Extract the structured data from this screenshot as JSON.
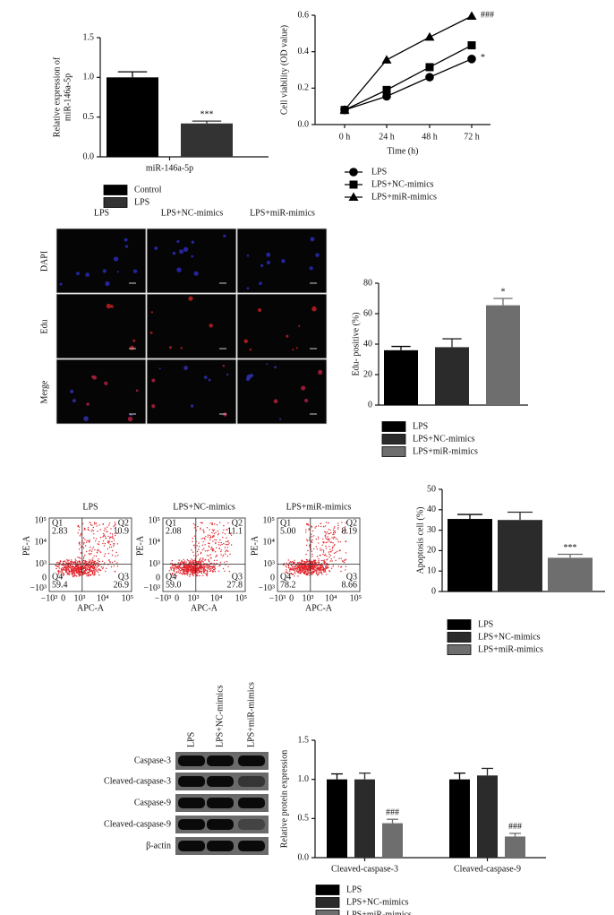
{
  "chart_data": [
    {
      "type": "bar",
      "y_label": [
        "Relative expression of",
        "miR-146a-5p"
      ],
      "categories": [
        "miR-146a-5p"
      ],
      "series": [
        {
          "name": "Control",
          "color": "#000000",
          "values": [
            1.0
          ],
          "errors": [
            0.07
          ],
          "annotations": [
            null
          ]
        },
        {
          "name": "LPS",
          "color": "#333333",
          "values": [
            0.42
          ],
          "errors": [
            0.03
          ],
          "annotations": [
            "***"
          ]
        }
      ],
      "ylim": [
        0,
        1.5
      ],
      "yticks": [
        {
          "value": 0,
          "label": "0.0"
        },
        0.5,
        {
          "value": 1,
          "label": "1.0"
        },
        1.5
      ]
    },
    {
      "type": "line",
      "x_label": "Time (h)",
      "y_label": [
        "Cell viability (OD value)"
      ],
      "categories": [
        "0 h",
        "24 h",
        "48 h",
        "72 h"
      ],
      "series": [
        {
          "name": "LPS",
          "color": "#000000",
          "marker": "circle",
          "values": [
            0.08,
            0.155,
            0.26,
            0.36
          ],
          "annotations": [
            null,
            null,
            null,
            "*"
          ]
        },
        {
          "name": "LPS+NC-mimics",
          "color": "#000000",
          "marker": "square",
          "values": [
            0.08,
            0.19,
            0.315,
            0.435
          ],
          "annotations": [
            null,
            null,
            null,
            null
          ]
        },
        {
          "name": "LPS+miR-mimics",
          "color": "#000000",
          "marker": "triangle",
          "values": [
            0.08,
            0.355,
            0.48,
            0.595
          ],
          "annotations": [
            null,
            null,
            null,
            "###"
          ]
        }
      ],
      "ylim": [
        0,
        0.6
      ],
      "yticks": [
        {
          "value": 0,
          "label": "0.0"
        },
        0.2,
        0.4,
        0.6
      ]
    },
    {
      "type": "bar",
      "y_label": [
        "Edu- positive (%)"
      ],
      "categories": [
        null
      ],
      "series": [
        {
          "name": "LPS",
          "color": "#000000",
          "values": [
            36
          ],
          "errors": [
            2.5
          ],
          "annotations": [
            null
          ]
        },
        {
          "name": "LPS+NC-mimics",
          "color": "#2b2b2b",
          "values": [
            38
          ],
          "errors": [
            5.5
          ],
          "annotations": [
            null
          ]
        },
        {
          "name": "LPS+miR-mimics",
          "color": "#6e6e6e",
          "values": [
            65.5
          ],
          "errors": [
            4.5
          ],
          "annotations": [
            "*"
          ]
        }
      ],
      "ylim": [
        0,
        80
      ],
      "yticks": [
        0,
        20,
        40,
        60,
        80
      ]
    },
    {
      "type": "bar",
      "y_label": [
        "Apoptosis cell (%)"
      ],
      "categories": [
        null
      ],
      "series": [
        {
          "name": "LPS",
          "color": "#000000",
          "values": [
            35.5
          ],
          "errors": [
            2.2
          ],
          "annotations": [
            null
          ]
        },
        {
          "name": "LPS+NC-mimics",
          "color": "#2b2b2b",
          "values": [
            35
          ],
          "errors": [
            3.8
          ],
          "annotations": [
            null
          ]
        },
        {
          "name": "LPS+miR-mimics",
          "color": "#6e6e6e",
          "values": [
            16.5
          ],
          "errors": [
            1.7
          ],
          "annotations": [
            "***"
          ]
        }
      ],
      "ylim": [
        0,
        50
      ],
      "yticks": [
        0,
        10,
        20,
        30,
        40,
        50
      ]
    },
    {
      "type": "bar",
      "y_label": [
        "Relative protein expression"
      ],
      "categories": [
        "Cleaved-caspase-3",
        "Cleaved-caspase-9"
      ],
      "series": [
        {
          "name": "LPS",
          "color": "#000000",
          "values": [
            1.0,
            1.0
          ],
          "errors": [
            0.07,
            0.08
          ],
          "annotations": [
            null,
            null
          ]
        },
        {
          "name": "LPS+NC-mimics",
          "color": "#2b2b2b",
          "values": [
            1.0,
            1.05
          ],
          "errors": [
            0.08,
            0.09
          ],
          "annotations": [
            null,
            null
          ]
        },
        {
          "name": "LPS+miR-mimics",
          "color": "#6e6e6e",
          "values": [
            0.44,
            0.27
          ],
          "errors": [
            0.05,
            0.04
          ],
          "annotations": [
            "###",
            "###"
          ]
        }
      ],
      "ylim": [
        0,
        1.5
      ],
      "yticks": [
        {
          "value": 0,
          "label": "0.0"
        },
        0.5,
        {
          "value": 1,
          "label": "1.0"
        },
        1.5
      ]
    }
  ],
  "microscopy": {
    "columns": [
      "LPS",
      "LPS+NC-mimics",
      "LPS+miR-mimics"
    ],
    "rows": [
      "DAPI",
      "Edu",
      "Merge"
    ]
  },
  "flow_cytometry": {
    "x_label": "APC-A",
    "y_label": "PE-A",
    "x_ticks": [
      "−10³",
      "0",
      "10³",
      "10⁴",
      "10⁵"
    ],
    "y_ticks": [
      "10⁵",
      "10⁴",
      "10³",
      "0",
      "−10³"
    ],
    "panels": [
      {
        "title": "LPS",
        "quadrants": [
          {
            "name": "Q1",
            "value": "2.83"
          },
          {
            "name": "Q2",
            "value": "10.9"
          },
          {
            "name": "Q3",
            "value": "26.9"
          },
          {
            "name": "Q4",
            "value": "59.4"
          }
        ]
      },
      {
        "title": "LPS+NC-mimics",
        "quadrants": [
          {
            "name": "Q1",
            "value": "2.08"
          },
          {
            "name": "Q2",
            "value": "11.1"
          },
          {
            "name": "Q3",
            "value": "27.8"
          },
          {
            "name": "Q4",
            "value": "59.0"
          }
        ]
      },
      {
        "title": "LPS+miR-mimics",
        "quadrants": [
          {
            "name": "Q1",
            "value": "5.00"
          },
          {
            "name": "Q2",
            "value": "8.19"
          },
          {
            "name": "Q3",
            "value": "8.66"
          },
          {
            "name": "Q4",
            "value": "78.2"
          }
        ]
      }
    ]
  },
  "western_blot": {
    "lanes": [
      "LPS",
      "LPS+NC-mimics",
      "LPS+miR-mimics"
    ],
    "proteins": [
      "Caspase-3",
      "Cleaved-caspase-3",
      "Caspase-9",
      "Cleaved-caspase-9",
      "β-actin"
    ]
  }
}
